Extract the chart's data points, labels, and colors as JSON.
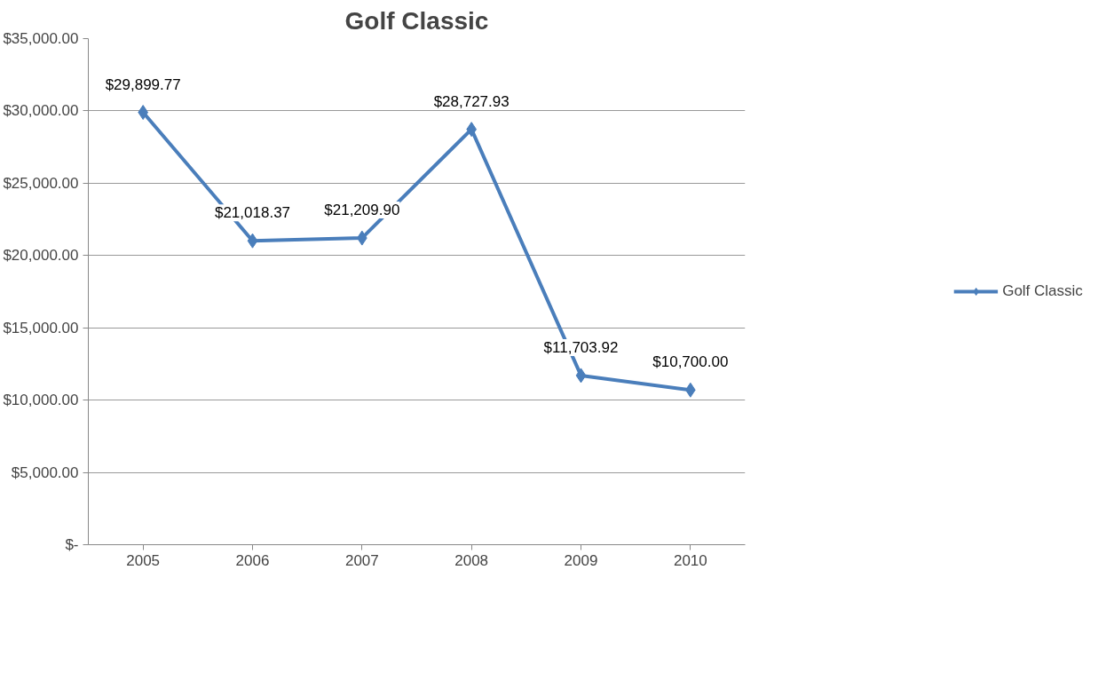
{
  "chart_data": {
    "type": "line",
    "title": "Golf Classic",
    "categories": [
      "2005",
      "2006",
      "2007",
      "2008",
      "2009",
      "2010"
    ],
    "series": [
      {
        "name": "Golf Classic",
        "color": "#4a7ebb",
        "values": [
          29899.77,
          21018.37,
          21209.9,
          28727.93,
          11703.92,
          10700.0
        ],
        "value_labels": [
          "$29,899.77",
          "$21,018.37",
          "$21,209.90",
          "$28,727.93",
          "$11,703.92",
          "$10,700.00"
        ]
      }
    ],
    "ylim": [
      0,
      35000
    ],
    "yticks": [
      {
        "value": 0,
        "label": "$-"
      },
      {
        "value": 5000,
        "label": "$5,000.00"
      },
      {
        "value": 10000,
        "label": "$10,000.00"
      },
      {
        "value": 15000,
        "label": "$15,000.00"
      },
      {
        "value": 20000,
        "label": "$20,000.00"
      },
      {
        "value": 25000,
        "label": "$25,000.00"
      },
      {
        "value": 30000,
        "label": "$30,000.00"
      },
      {
        "value": 35000,
        "label": "$35,000.00"
      }
    ],
    "grid": "y",
    "legend": "right",
    "marker": "diamond",
    "line_style": "solid"
  }
}
